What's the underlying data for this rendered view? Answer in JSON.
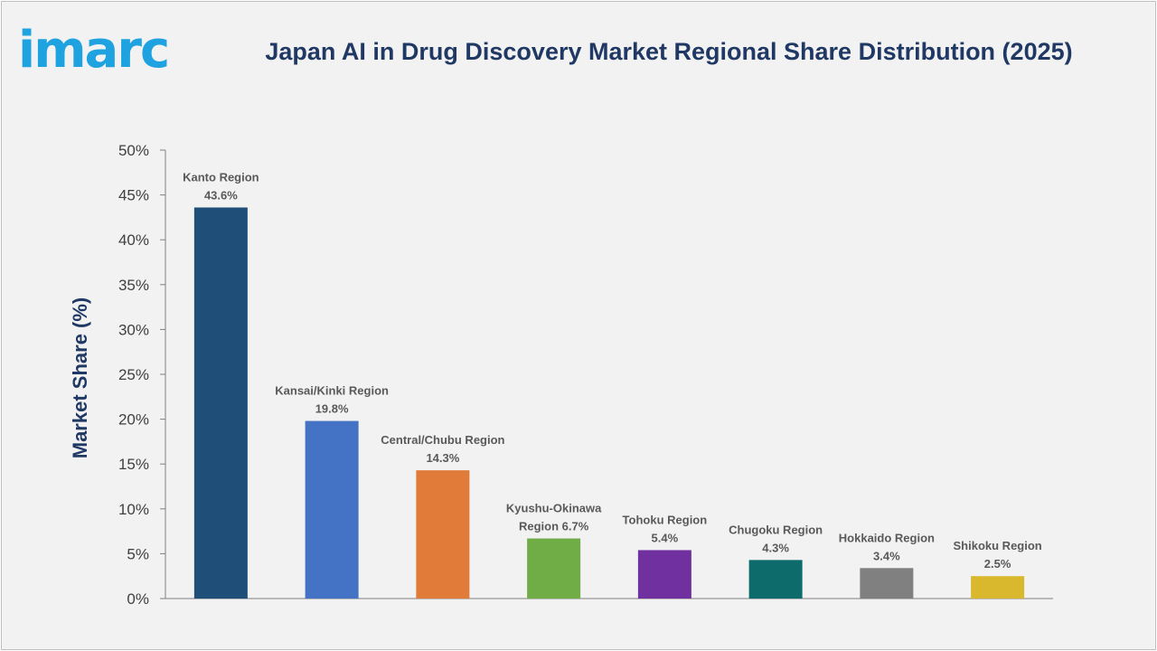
{
  "brand": {
    "logo_text": "imarc",
    "logo_color": "#1fa2e0"
  },
  "chart_data": {
    "type": "bar",
    "title": "Japan AI in Drug Discovery Market Regional Share Distribution (2025)",
    "xlabel": "",
    "ylabel": "Market Share (%)",
    "ylim": [
      0,
      50
    ],
    "yticks": [
      "0%",
      "5%",
      "10%",
      "15%",
      "20%",
      "25%",
      "30%",
      "35%",
      "40%",
      "45%",
      "50%"
    ],
    "grid": false,
    "legend": "none",
    "categories": [
      "Kanto Region",
      "Kansai/Kinki Region",
      "Central/Chubu Region",
      "Kyushu-Okinawa Region",
      "Tohoku Region",
      "Chugoku Region",
      "Hokkaido Region",
      "Shikoku Region"
    ],
    "values": [
      43.6,
      19.8,
      14.3,
      6.7,
      5.4,
      4.3,
      3.4,
      2.5
    ],
    "data_labels": [
      [
        "Kanto Region",
        "43.6%"
      ],
      [
        "Kansai/Kinki Region",
        "19.8%"
      ],
      [
        "Central/Chubu Region",
        "14.3%"
      ],
      [
        "Kyushu-Okinawa",
        "Region 6.7%"
      ],
      [
        "Tohoku Region",
        "5.4%"
      ],
      [
        "Chugoku Region",
        "4.3%"
      ],
      [
        "Hokkaido Region",
        "3.4%"
      ],
      [
        "Shikoku Region",
        "2.5%"
      ]
    ],
    "colors": [
      "#1f4e79",
      "#4472c4",
      "#e07b39",
      "#70ad47",
      "#7030a0",
      "#0e6b6b",
      "#808080",
      "#d9b82e"
    ]
  }
}
